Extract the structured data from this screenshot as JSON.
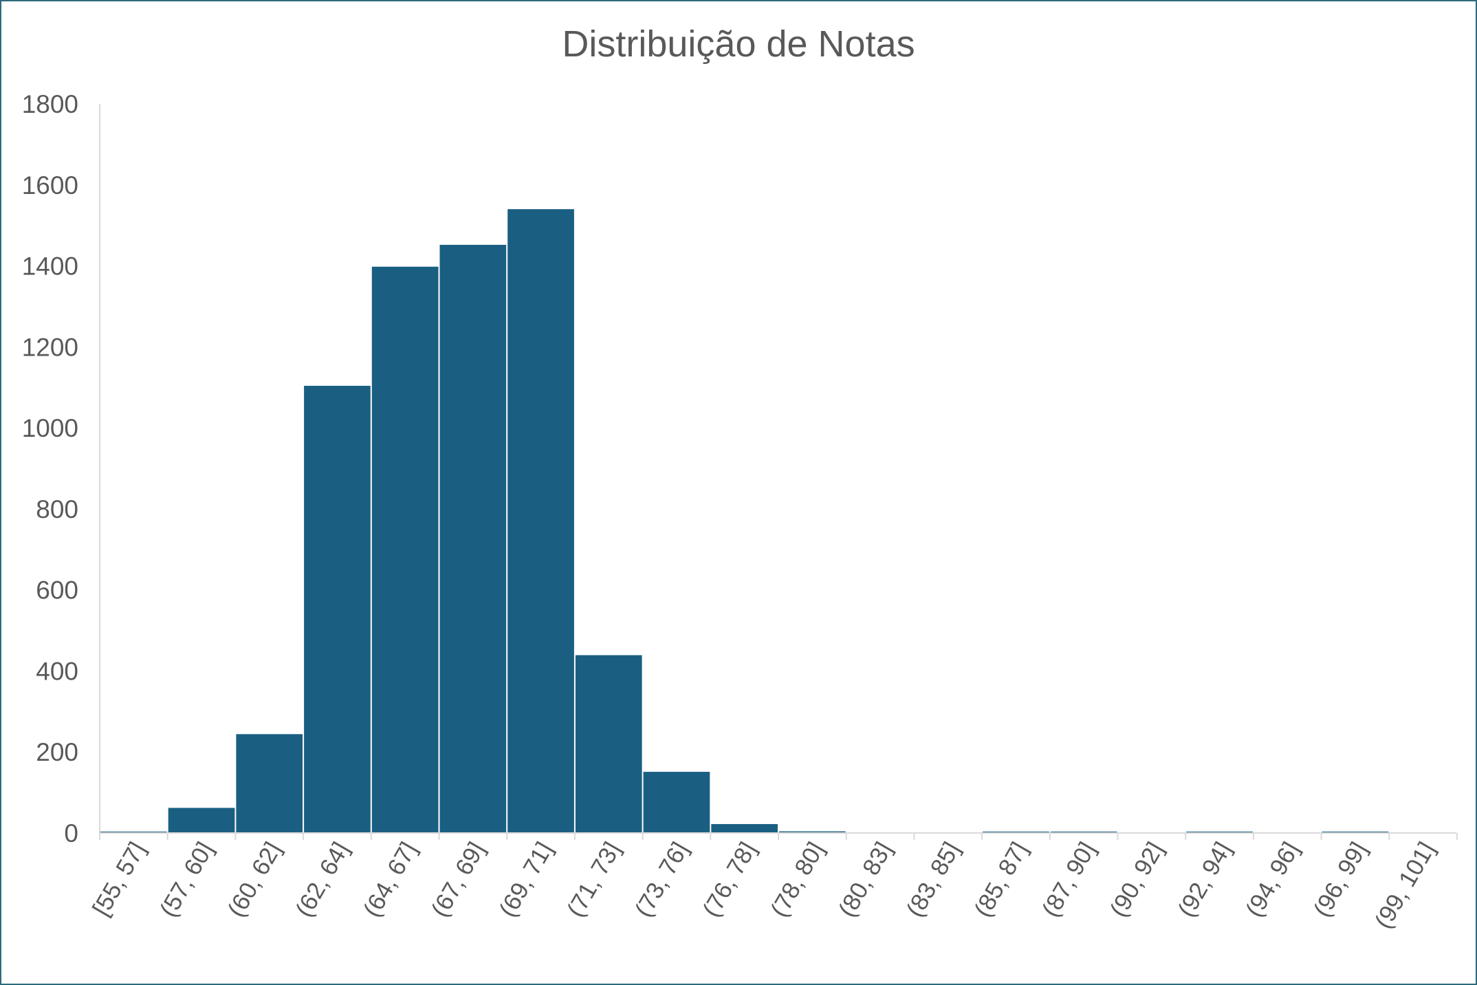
{
  "chart_data": {
    "type": "bar",
    "title": "Distribuição de Notas",
    "xlabel": "",
    "ylabel": "",
    "ylim": [
      0,
      1800
    ],
    "yticks": [
      0,
      200,
      400,
      600,
      800,
      1000,
      1200,
      1400,
      1600,
      1800
    ],
    "grid": false,
    "legend": "none",
    "categories": [
      "[55, 57]",
      "(57, 60]",
      "(60, 62]",
      "(62, 64]",
      "(64, 67]",
      "(67, 69]",
      "(69, 71]",
      "(71, 73]",
      "(73, 76]",
      "(76, 78]",
      "(78, 80]",
      "(80, 83]",
      "(83, 85]",
      "(85, 87]",
      "(87, 90]",
      "(90, 92]",
      "(92, 94]",
      "(94, 96]",
      "(96, 99]",
      "(99, 101]"
    ],
    "values": [
      2,
      62,
      244,
      1104,
      1398,
      1452,
      1540,
      439,
      151,
      22,
      4,
      0,
      0,
      3,
      2,
      0,
      3,
      0,
      2,
      0
    ],
    "colors": {
      "bar": "#1a5f82",
      "axis": "#d9d9d9",
      "text": "#595959",
      "frame": "#2d6a7c"
    }
  }
}
